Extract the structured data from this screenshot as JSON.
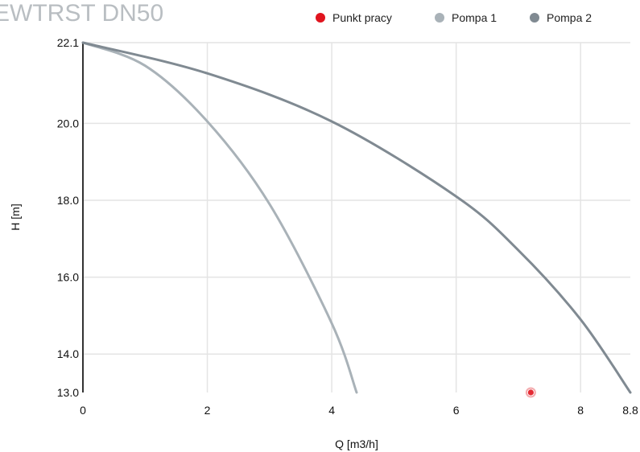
{
  "chart_data": {
    "type": "line",
    "title": "EWTRST DN50",
    "xlabel": "Q [m3/h]",
    "ylabel": "H [m]",
    "xlim": [
      0,
      8.8
    ],
    "ylim": [
      13.0,
      22.1
    ],
    "x_ticks": [
      "0",
      "2",
      "4",
      "6",
      "8",
      "8.8"
    ],
    "x_tick_values": [
      0,
      2,
      4,
      6,
      8,
      8.8
    ],
    "y_ticks": [
      "13.0",
      "14.0",
      "16.0",
      "18.0",
      "20.0",
      "22.1"
    ],
    "y_tick_values": [
      13.0,
      14.0,
      16.0,
      18.0,
      20.0,
      22.1
    ],
    "grid": true,
    "legend_position": "top-right",
    "series": [
      {
        "name": "Punkt pracy",
        "kind": "point",
        "color": "#e0141e",
        "points": [
          [
            7.2,
            13.0
          ]
        ]
      },
      {
        "name": "Pompa 1",
        "kind": "line",
        "color": "#a9b2b8",
        "points": [
          [
            0,
            22.1
          ],
          [
            1,
            21.5
          ],
          [
            2,
            20.05
          ],
          [
            3,
            17.9
          ],
          [
            4,
            14.8
          ],
          [
            4.4,
            13.0
          ]
        ]
      },
      {
        "name": "Pompa 2",
        "kind": "line",
        "color": "#808a92",
        "points": [
          [
            0,
            22.1
          ],
          [
            2,
            21.3
          ],
          [
            4,
            20.05
          ],
          [
            6,
            18.1
          ],
          [
            7,
            16.7
          ],
          [
            8,
            14.9
          ],
          [
            8.8,
            13.0
          ]
        ]
      }
    ]
  }
}
